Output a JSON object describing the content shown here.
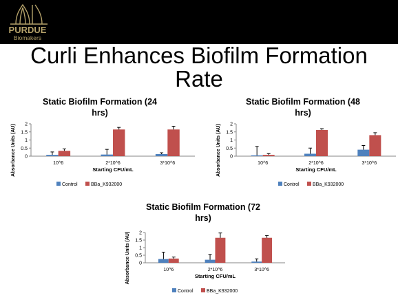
{
  "logo": {
    "brand": "PURDUE",
    "sub": "Biomakers"
  },
  "slide_title": "Curli Enhances Biofilm Formation Rate",
  "colors": {
    "control": "#4f81bd",
    "bba": "#c0504d",
    "axis": "#868686"
  },
  "chart_data": [
    {
      "type": "bar",
      "title": "Static Biofilm Formation (24 hrs)",
      "xlabel": "Starting CFU/mL",
      "ylabel": "Absorbance Units (AU)",
      "ylim": [
        0,
        2
      ],
      "yticks": [
        "0",
        "0.5",
        "1",
        "1.5",
        "2"
      ],
      "categories": [
        "10^6",
        "2*10^6",
        "3*10^6"
      ],
      "series": [
        {
          "name": "Control",
          "values": [
            0.08,
            0.1,
            0.13
          ],
          "errors": [
            0.18,
            0.32,
            0.08
          ]
        },
        {
          "name": "BBa_K932000",
          "values": [
            0.33,
            1.65,
            1.65
          ],
          "errors": [
            0.12,
            0.13,
            0.2
          ]
        }
      ]
    },
    {
      "type": "bar",
      "title": "Static Biofilm Formation (48 hrs)",
      "xlabel": "Starting CFU/mL",
      "ylabel": "Absorbance Units (AU)",
      "ylim": [
        0,
        2
      ],
      "yticks": [
        "0",
        "0.5",
        "1",
        "1.5",
        "2"
      ],
      "categories": [
        "10^6",
        "2*10^6",
        "3*10^6"
      ],
      "series": [
        {
          "name": "Control",
          "values": [
            0.05,
            0.15,
            0.4
          ],
          "errors": [
            0.55,
            0.35,
            0.26
          ]
        },
        {
          "name": "BBa_K932000",
          "values": [
            0.08,
            1.62,
            1.3
          ],
          "errors": [
            0.08,
            0.08,
            0.15
          ]
        }
      ]
    },
    {
      "type": "bar",
      "title": "Static Biofilm Formation (72 hrs)",
      "xlabel": "Starting CFU/mL",
      "ylabel": "Absorbance Units (AU)",
      "ylim": [
        0,
        2
      ],
      "yticks": [
        "0",
        "0.5",
        "1",
        "1.5",
        "2"
      ],
      "categories": [
        "10^6",
        "2*10^6",
        "3*10^6"
      ],
      "series": [
        {
          "name": "Control",
          "values": [
            0.25,
            0.2,
            0.08
          ],
          "errors": [
            0.45,
            0.35,
            0.18
          ]
        },
        {
          "name": "BBa_K932000",
          "values": [
            0.28,
            1.65,
            1.65
          ],
          "errors": [
            0.1,
            0.32,
            0.15
          ]
        }
      ]
    }
  ]
}
